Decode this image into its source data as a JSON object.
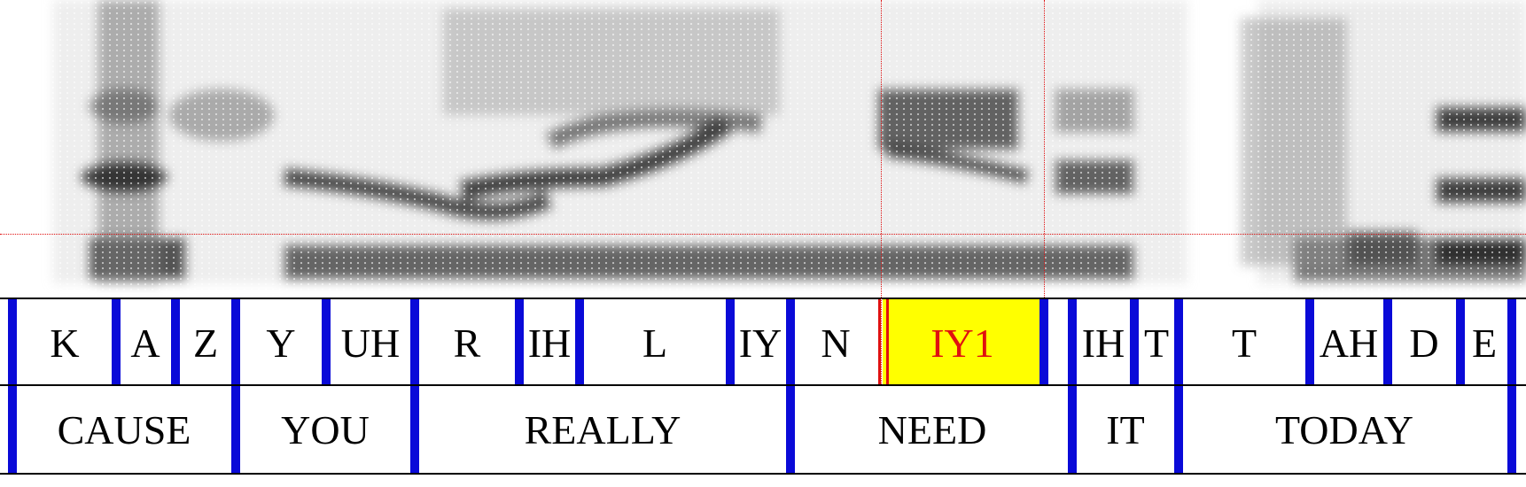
{
  "phone_tier": {
    "intervals": [
      {
        "label": "K"
      },
      {
        "label": "A"
      },
      {
        "label": "Z"
      },
      {
        "label": "Y"
      },
      {
        "label": "UH"
      },
      {
        "label": "R"
      },
      {
        "label": "IH"
      },
      {
        "label": "L"
      },
      {
        "label": "IY"
      },
      {
        "label": "N"
      },
      {
        "label": "IY1",
        "selected": true
      },
      {
        "label": ""
      },
      {
        "label": "IH"
      },
      {
        "label": "T"
      },
      {
        "label": "T"
      },
      {
        "label": "AH"
      },
      {
        "label": "D"
      },
      {
        "label": "E"
      }
    ]
  },
  "word_tier": {
    "intervals": [
      {
        "label": "CAUSE"
      },
      {
        "label": "YOU"
      },
      {
        "label": "REALLY"
      },
      {
        "label": "NEED"
      },
      {
        "label": ""
      },
      {
        "label": "IT"
      },
      {
        "label": "TODAY"
      }
    ]
  },
  "colors": {
    "boundary": "#0a0ad8",
    "selection_fill": "#ffff00",
    "selection_text": "#e01010",
    "cursor": "#e01010"
  }
}
